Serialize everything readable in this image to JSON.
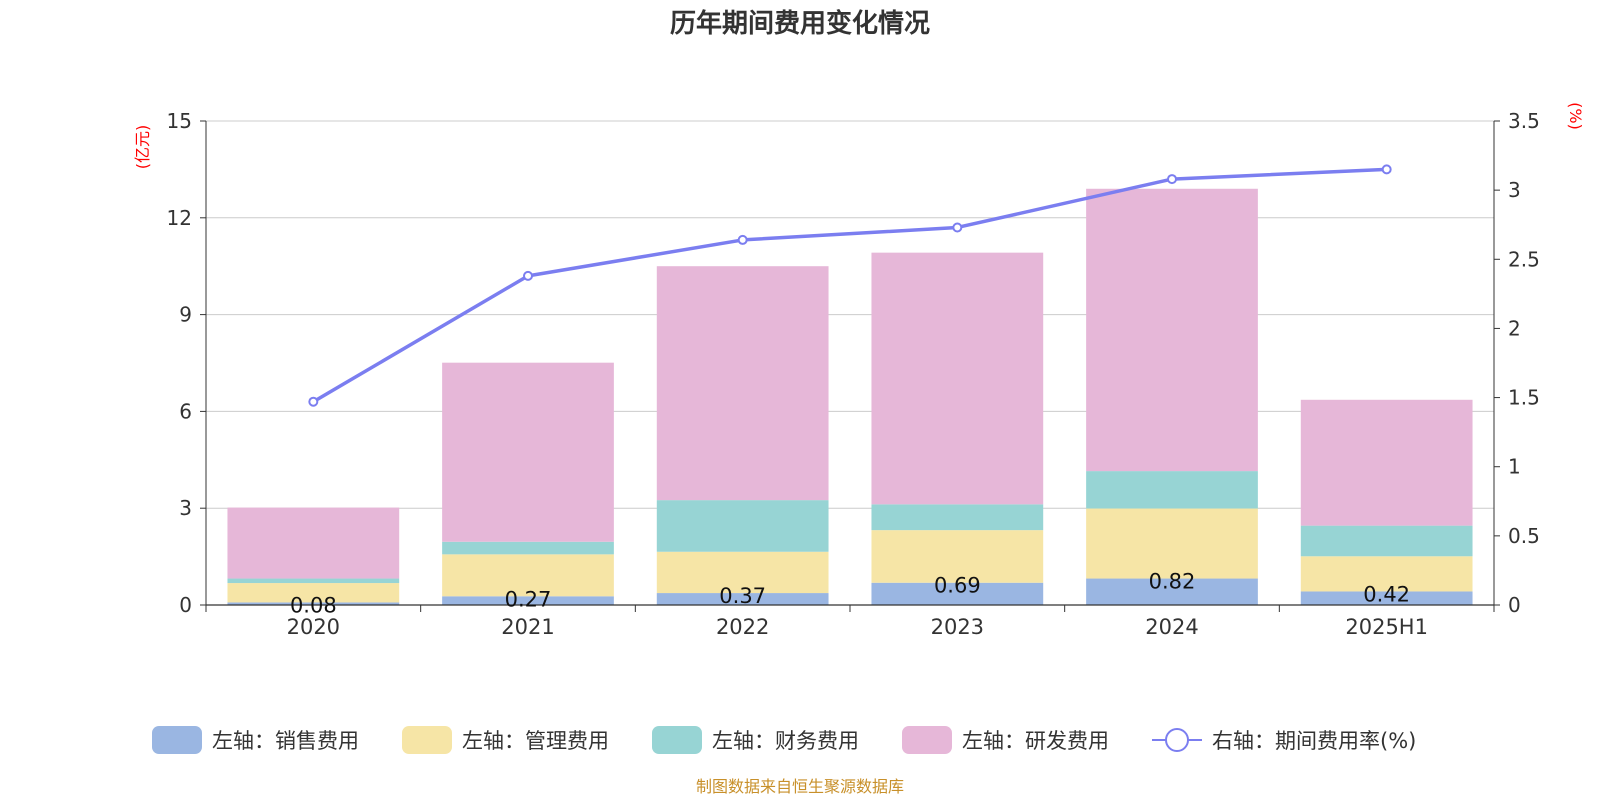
{
  "colors": {
    "sales": "#9ab6e2",
    "admin": "#f6e5a6",
    "finance": "#97d4d4",
    "rnd": "#e6b7d8",
    "rate": "#7b7ef0",
    "axis_unit": "#ff0000",
    "source": "#c8902a",
    "grid": "#cccccc"
  },
  "chart_data": {
    "type": "bar",
    "title": "历年期间费用变化情况",
    "left_axis_unit": "(亿元)",
    "right_axis_unit": "(%)",
    "categories": [
      "2020",
      "2021",
      "2022",
      "2023",
      "2024",
      "2025H1"
    ],
    "left_ylim": [
      0,
      15
    ],
    "left_ticks": [
      "0",
      "3",
      "6",
      "9",
      "12",
      "15"
    ],
    "right_ylim": [
      0,
      3.5
    ],
    "right_ticks": [
      "0",
      "0.5",
      "1",
      "1.5",
      "2",
      "2.5",
      "3",
      "3.5"
    ],
    "stacked": true,
    "grid": true,
    "legend_position": "bottom",
    "series": [
      {
        "name": "左轴：销售费用",
        "axis": "left",
        "type": "bar",
        "values": [
          0.08,
          0.27,
          0.37,
          0.69,
          0.82,
          0.42
        ],
        "labels": [
          "0.08",
          "0.27",
          "0.37",
          "0.69",
          "0.82",
          "0.42"
        ]
      },
      {
        "name": "左轴：管理费用",
        "axis": "left",
        "type": "bar",
        "values": [
          0.6,
          1.3,
          1.28,
          1.63,
          2.17,
          1.09
        ]
      },
      {
        "name": "左轴：财务费用",
        "axis": "left",
        "type": "bar",
        "values": [
          0.14,
          0.39,
          1.6,
          0.8,
          1.16,
          0.95
        ]
      },
      {
        "name": "左轴：研发费用",
        "axis": "left",
        "type": "bar",
        "values": [
          2.2,
          5.55,
          7.25,
          7.8,
          8.75,
          3.9
        ]
      },
      {
        "name": "右轴：期间费用率(%)",
        "axis": "right",
        "type": "line",
        "values": [
          1.47,
          2.38,
          2.64,
          2.73,
          3.08,
          3.15
        ]
      }
    ]
  },
  "footer": {
    "source": "制图数据来自恒生聚源数据库"
  }
}
